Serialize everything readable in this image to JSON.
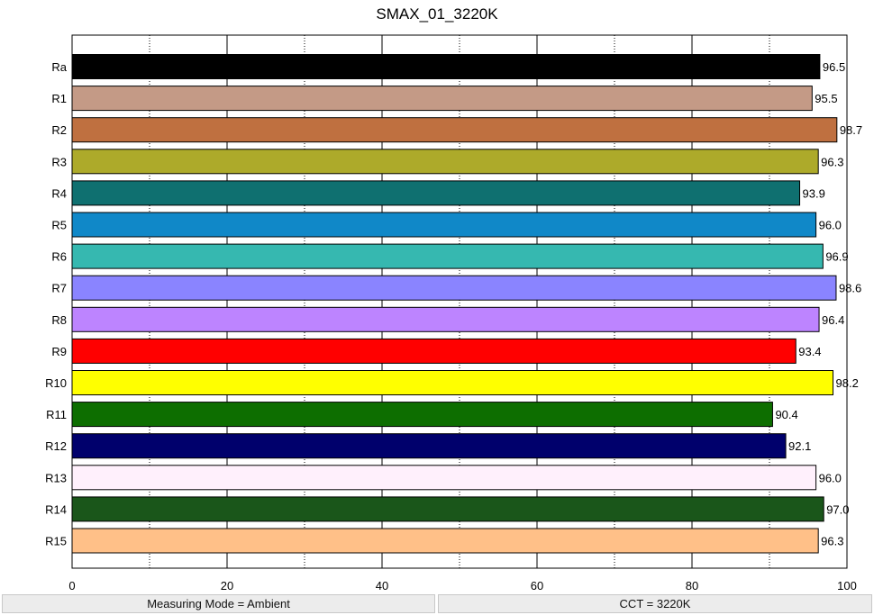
{
  "chart_data": {
    "type": "bar",
    "orientation": "horizontal",
    "title": "SMAX_01_3220K",
    "xlabel": "",
    "ylabel": "",
    "xlim": [
      0,
      100
    ],
    "x_ticks": [
      0,
      20,
      40,
      60,
      80,
      100
    ],
    "minor_grid": [
      10,
      30,
      50,
      70,
      90
    ],
    "grid": true,
    "categories": [
      "Ra",
      "R1",
      "R2",
      "R3",
      "R4",
      "R5",
      "R6",
      "R7",
      "R8",
      "R9",
      "R10",
      "R11",
      "R12",
      "R13",
      "R14",
      "R15"
    ],
    "values": [
      96.5,
      95.5,
      98.7,
      96.3,
      93.9,
      96.0,
      96.9,
      98.6,
      96.4,
      93.4,
      98.2,
      90.4,
      92.1,
      96.0,
      97.0,
      96.3
    ],
    "value_labels": [
      "96.5",
      "95.5",
      "98.7",
      "96.3",
      "93.9",
      "96.0",
      "96.9",
      "98.6",
      "96.4",
      "93.4",
      "98.2",
      "90.4",
      "92.1",
      "96.0",
      "97.0",
      "96.3"
    ],
    "colors": [
      "#000000",
      "#c49a86",
      "#bf7040",
      "#adaa2a",
      "#0f7070",
      "#1088c8",
      "#36b8b0",
      "#8a84ff",
      "#bd84ff",
      "#ff0000",
      "#ffff00",
      "#0d6e00",
      "#00006c",
      "#fff0fc",
      "#1a561a",
      "#ffc088"
    ],
    "label_colors": [
      "#ffffff",
      "#000000",
      "#000000",
      "#000000",
      "#000000",
      "#000000",
      "#000000",
      "#000000",
      "#000000",
      "#000000",
      "#000000",
      "#000000",
      "#000000",
      "#000000",
      "#000000",
      "#000000"
    ]
  },
  "status": {
    "measuring_mode": "Measuring Mode = Ambient",
    "cct": "CCT = 3220K"
  }
}
